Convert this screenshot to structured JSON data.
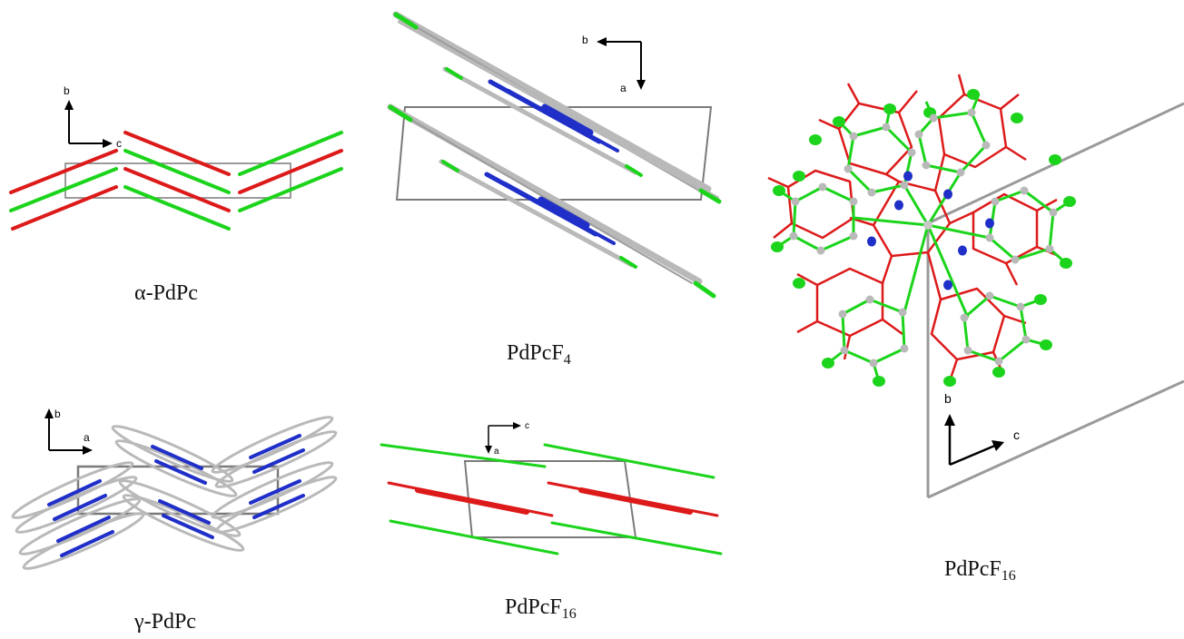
{
  "colors": {
    "red": "#dd1a1a",
    "green": "#1bd41b",
    "blue": "#1f2fc8",
    "gray": "#b9b9b9",
    "cell": "#7a7a7a",
    "axis": "#000000"
  },
  "panels": {
    "alpha": {
      "caption": "α-PdPc",
      "axis_v": "b",
      "axis_h": "c"
    },
    "f4": {
      "caption_main": "PdPcF",
      "caption_sub": "4",
      "axis_h": "b",
      "axis_v": "a"
    },
    "gamma": {
      "caption": "γ-PdPc",
      "axis_v": "b",
      "axis_h": "a"
    },
    "f16_side": {
      "caption_main": "PdPcF",
      "caption_sub": "16",
      "axis_h": "c",
      "axis_v": "a"
    },
    "f16_top": {
      "caption_main": "PdPcF",
      "caption_sub": "16",
      "axis_v": "b",
      "axis_h": "c"
    }
  }
}
